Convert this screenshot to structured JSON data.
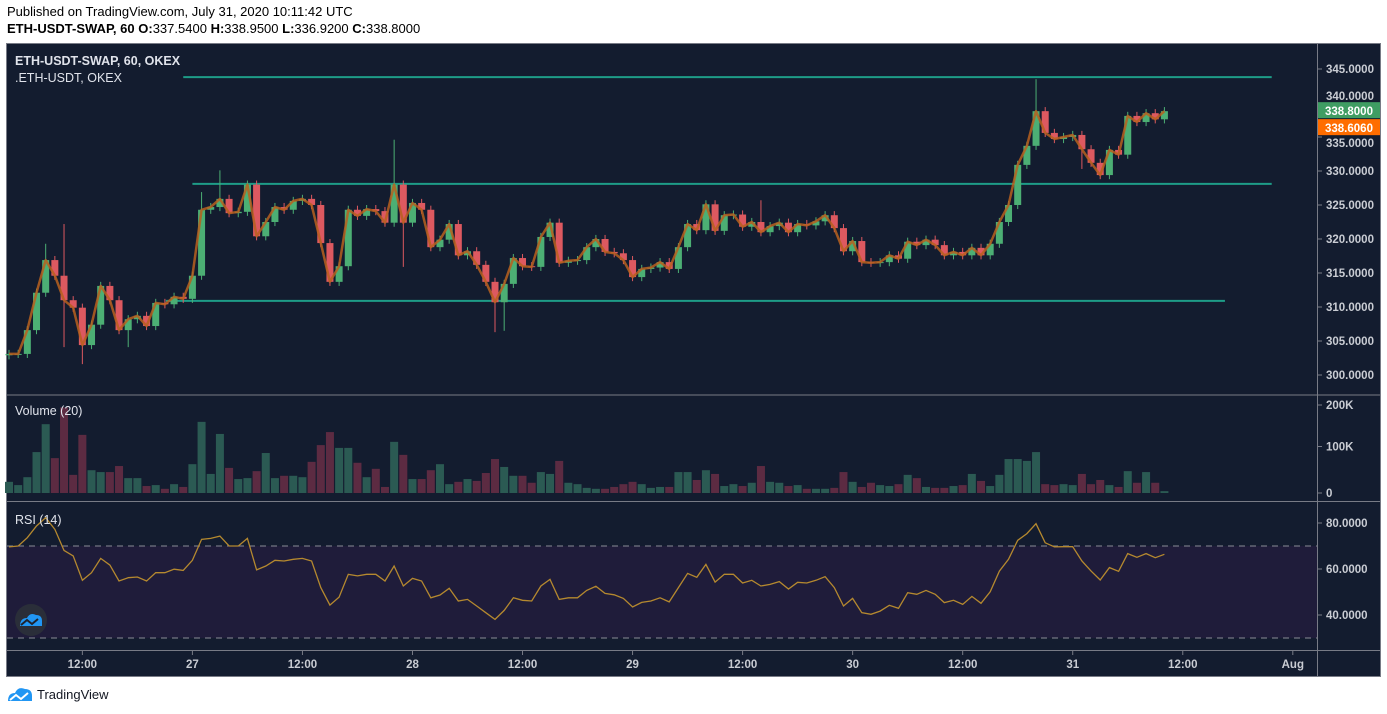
{
  "header": {
    "published": "Published on TradingView.com, July 31, 2020 10:11:42 UTC",
    "symbol_interval": "ETH-USDT-SWAP, 60",
    "o_label": "O:",
    "o_value": "337.5400",
    "h_label": "H:",
    "h_value": "338.9500",
    "l_label": "L:",
    "l_value": "336.9200",
    "c_label": "C:",
    "c_value": "338.8000"
  },
  "legend": {
    "main_series": "ETH-USDT-SWAP, 60, OKEX",
    "overlay_series": ".ETH-USDT, OKEX",
    "volume": "Volume (20)",
    "rsi": "RSI (14)"
  },
  "footer": {
    "brand": "TradingView"
  },
  "colors": {
    "background": "#131c2f",
    "up": "#4caf74",
    "down": "#dd5960",
    "volume_up": "#2b5a53",
    "volume_down": "#5c2b42",
    "overlay_line": "#b8601f",
    "level_line": "#1e9c88",
    "rsi_line": "#b5892f",
    "rsi_band": "#1f1c3a",
    "last_price_badge": "#3f9d63",
    "overlay_badge": "#ff6d00"
  },
  "chart_data": [
    {
      "type": "candlestick",
      "title": "ETH-USDT-SWAP, 60, OKEX",
      "interval_minutes": 60,
      "first_candle": "Jul 26 04:00",
      "first_open": 302.9,
      "close": [
        303.1,
        303.1,
        306.6,
        312.1,
        316.9,
        314.6,
        311.0,
        309.9,
        304.4,
        307.4,
        313.1,
        311.0,
        306.6,
        308.2,
        308.7,
        307.2,
        310.6,
        310.4,
        311.5,
        311.2,
        314.6,
        324.3,
        324.7,
        325.9,
        323.8,
        324.0,
        328.0,
        320.4,
        322.5,
        324.7,
        324.3,
        325.6,
        325.9,
        325.0,
        319.4,
        313.7,
        316.0,
        324.3,
        323.4,
        324.4,
        324.1,
        322.4,
        328.0,
        322.4,
        325.3,
        324.3,
        318.8,
        319.9,
        322.2,
        317.6,
        318.2,
        316.2,
        313.7,
        310.7,
        313.4,
        317.2,
        316.0,
        315.9,
        320.3,
        322.4,
        316.5,
        316.8,
        316.9,
        318.8,
        320.0,
        318.1,
        317.9,
        316.9,
        314.4,
        315.6,
        315.8,
        316.6,
        315.6,
        318.8,
        322.2,
        321.3,
        325.1,
        321.2,
        323.5,
        323.6,
        321.8,
        322.5,
        321.0,
        321.9,
        322.4,
        321.0,
        322.2,
        322.0,
        322.6,
        323.5,
        321.6,
        318.2,
        319.7,
        316.6,
        316.5,
        316.6,
        317.6,
        317.1,
        319.6,
        319.1,
        319.9,
        319.1,
        317.6,
        318.1,
        317.6,
        318.7,
        317.6,
        319.3,
        322.5,
        325.0,
        330.9,
        333.7,
        338.8,
        335.6,
        334.7,
        335.0,
        335.3,
        333.2,
        331.2,
        329.4,
        333.1,
        332.4,
        338.1,
        337.2,
        338.5,
        337.6,
        338.8
      ],
      "wick_pad": 0.6,
      "wicks": {
        "4": [
          319.3,
          null
        ],
        "6": [
          322.2,
          304.1
        ],
        "8": [
          null,
          301.6
        ],
        "13": [
          null,
          304.1
        ],
        "21": [
          326.9,
          null
        ],
        "23": [
          330.1,
          null
        ],
        "42": [
          334.6,
          null
        ],
        "43": [
          null,
          315.9
        ],
        "53": [
          null,
          306.3
        ],
        "54": [
          null,
          306.5
        ],
        "82": [
          325.7,
          null
        ],
        "112": [
          343.5,
          null
        ],
        "117": [
          null,
          330.3
        ]
      },
      "overlay_name": ".ETH-USDT, OKEX",
      "overlay_last": "338.6060",
      "last_price": "338.8000",
      "levels": [
        343.8,
        328.1,
        310.9
      ],
      "y_ticks": [
        "345.0000",
        "340.0000",
        "335.0000",
        "330.0000",
        "325.0000",
        "320.0000",
        "315.0000",
        "310.0000",
        "305.0000",
        "300.0000"
      ],
      "y_tick_values": [
        345,
        340,
        335,
        330,
        325,
        320,
        315,
        310,
        305,
        300
      ],
      "ylim": [
        297,
        347
      ]
    },
    {
      "type": "bar",
      "title": "Volume (20)",
      "unit": "K",
      "values": [
        24,
        17,
        34,
        88,
        148,
        75,
        184,
        39,
        125,
        49,
        45,
        45,
        58,
        32,
        32,
        15,
        17,
        9,
        19,
        13,
        62,
        153,
        41,
        127,
        54,
        30,
        32,
        47,
        86,
        32,
        37,
        37,
        34,
        67,
        103,
        131,
        97,
        97,
        65,
        34,
        52,
        13,
        110,
        82,
        30,
        30,
        49,
        62,
        19,
        24,
        30,
        26,
        43,
        73,
        56,
        37,
        37,
        22,
        45,
        41,
        69,
        22,
        19,
        11,
        9,
        9,
        13,
        19,
        24,
        19,
        11,
        13,
        13,
        45,
        45,
        28,
        49,
        41,
        15,
        19,
        15,
        22,
        58,
        24,
        22,
        15,
        17,
        9,
        9,
        9,
        11,
        45,
        24,
        13,
        22,
        17,
        15,
        19,
        39,
        32,
        13,
        11,
        11,
        15,
        17,
        41,
        26,
        15,
        39,
        73,
        73,
        69,
        88,
        19,
        17,
        19,
        17,
        41,
        19,
        28,
        17,
        13,
        47,
        22,
        45,
        22,
        4
      ],
      "y_ticks": [
        "200K",
        "100K",
        "0"
      ],
      "y_tick_values": [
        200,
        100,
        0
      ],
      "ylim": [
        0,
        200
      ]
    },
    {
      "type": "line",
      "title": "RSI (14)",
      "values": [
        69.6,
        70,
        73.6,
        78.7,
        82.3,
        77.2,
        68.1,
        65.7,
        55.1,
        58.4,
        64.6,
        61.7,
        54.8,
        56.2,
        56.5,
        54.8,
        58.4,
        58.4,
        59.9,
        59.4,
        63.8,
        72.9,
        73.3,
        74.3,
        70,
        70,
        73.3,
        59.6,
        61.3,
        63.8,
        63.5,
        64.2,
        64.6,
        63.5,
        51.9,
        44.3,
        47.8,
        57.7,
        57,
        57.7,
        57.7,
        54.8,
        61.3,
        52.6,
        55.9,
        54.8,
        47.5,
        48.7,
        51.6,
        46.1,
        46.8,
        43.9,
        41,
        38.1,
        42,
        47.5,
        46.4,
        46.1,
        52.6,
        55.5,
        46.8,
        47.5,
        47.5,
        50.7,
        52.5,
        49.4,
        48.8,
        47.2,
        43.5,
        45.5,
        46.1,
        47.5,
        45.7,
        51.9,
        58.1,
        56.4,
        62.0,
        54.3,
        57.7,
        57.7,
        53.9,
        55.1,
        52.6,
        53.3,
        54.5,
        51.3,
        54.2,
        53.9,
        55.1,
        56.7,
        51.9,
        43.9,
        47.2,
        41.0,
        40.3,
        41.7,
        44.2,
        42.9,
        49.7,
        49.0,
        50.7,
        49.0,
        45.4,
        46.4,
        44.6,
        48.1,
        45.1,
        50.1,
        59.1,
        64.2,
        72.5,
        75.4,
        79.7,
        71.4,
        69.6,
        69.7,
        69.7,
        63.5,
        59.1,
        55.2,
        60.6,
        59.0,
        66.7,
        65.1,
        66.7,
        64.9,
        66.4
      ],
      "bands": [
        70,
        30
      ],
      "y_ticks": [
        "80.0000",
        "60.0000",
        "40.0000"
      ],
      "y_tick_values": [
        80,
        60,
        40
      ],
      "ylim": [
        27,
        85
      ]
    }
  ],
  "time_axis": [
    {
      "label": "12:00",
      "hour": 8
    },
    {
      "label": "27",
      "hour": 20
    },
    {
      "label": "12:00",
      "hour": 32
    },
    {
      "label": "28",
      "hour": 44
    },
    {
      "label": "12:00",
      "hour": 56
    },
    {
      "label": "29",
      "hour": 68
    },
    {
      "label": "12:00",
      "hour": 80
    },
    {
      "label": "30",
      "hour": 92
    },
    {
      "label": "12:00",
      "hour": 104
    },
    {
      "label": "31",
      "hour": 116
    },
    {
      "label": "12:00",
      "hour": 128
    },
    {
      "label": "Aug",
      "hour": 140
    }
  ]
}
